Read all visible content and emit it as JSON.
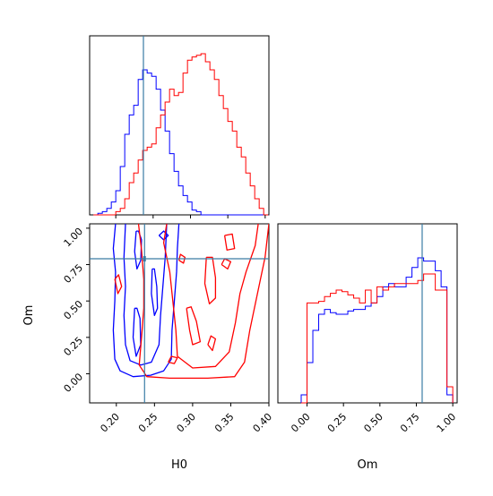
{
  "chart_data": [
    {
      "type": "histogram",
      "panel": "H0 marginal",
      "x_range": [
        0.165,
        0.405
      ],
      "bin_edges": [
        0.17,
        0.176,
        0.182,
        0.188,
        0.194,
        0.2,
        0.206,
        0.212,
        0.218,
        0.224,
        0.23,
        0.236,
        0.242,
        0.248,
        0.254,
        0.26,
        0.266,
        0.272,
        0.278,
        0.284,
        0.29,
        0.296,
        0.302,
        0.308,
        0.314,
        0.32,
        0.326,
        0.332,
        0.338,
        0.344,
        0.35,
        0.356,
        0.362,
        0.368,
        0.374,
        0.38,
        0.386,
        0.392,
        0.398,
        0.404
      ],
      "series": [
        {
          "color": "#0000ff",
          "counts": [
            0,
            0.01,
            0.02,
            0.04,
            0.08,
            0.15,
            0.3,
            0.5,
            0.62,
            0.68,
            0.84,
            0.9,
            0.88,
            0.86,
            0.78,
            0.65,
            0.52,
            0.38,
            0.27,
            0.18,
            0.12,
            0.08,
            0.03,
            0.02,
            0,
            0,
            0,
            0,
            0,
            0,
            0,
            0,
            0,
            0,
            0,
            0,
            0,
            0,
            0
          ]
        },
        {
          "color": "#ff0000",
          "counts": [
            0,
            0,
            0,
            0,
            0,
            0.02,
            0.04,
            0.1,
            0.2,
            0.26,
            0.34,
            0.4,
            0.42,
            0.44,
            0.54,
            0.62,
            0.7,
            0.78,
            0.74,
            0.76,
            0.88,
            0.96,
            0.98,
            0.99,
            1.0,
            0.95,
            0.9,
            0.84,
            0.74,
            0.66,
            0.58,
            0.52,
            0.42,
            0.36,
            0.26,
            0.18,
            0.1,
            0.04,
            0
          ]
        }
      ],
      "truth_line": 0.237,
      "xticks": [
        0.2,
        0.25,
        0.3,
        0.35,
        0.4
      ]
    },
    {
      "type": "contour",
      "panel": "H0 vs Om",
      "xlabel": "H0",
      "ylabel": "Om",
      "xlim": [
        0.165,
        0.4
      ],
      "ylim": [
        -0.2,
        1.03
      ],
      "xticks": [
        0.2,
        0.25,
        0.3,
        0.35,
        0.4
      ],
      "xtick_labels": [
        "0.20",
        "0.25",
        "0.30",
        "0.35",
        "0.40"
      ],
      "yticks": [
        0.0,
        0.25,
        0.5,
        0.75,
        1.0
      ],
      "ytick_labels": [
        "0.00",
        "0.25",
        "0.50",
        "0.75",
        "1.00"
      ],
      "truth_point": [
        0.237,
        0.79
      ],
      "series": [
        {
          "color": "#0000ff",
          "contours": [
            [
              [
                0.199,
                1.03
              ],
              [
                0.196,
                0.86
              ],
              [
                0.199,
                0.7
              ],
              [
                0.198,
                0.5
              ],
              [
                0.196,
                0.3
              ],
              [
                0.198,
                0.1
              ],
              [
                0.205,
                0.02
              ],
              [
                0.222,
                -0.02
              ],
              [
                0.245,
                -0.01
              ],
              [
                0.262,
                0.02
              ],
              [
                0.272,
                0.1
              ],
              [
                0.273,
                0.3
              ],
              [
                0.276,
                0.5
              ],
              [
                0.279,
                0.7
              ],
              [
                0.28,
                0.86
              ],
              [
                0.282,
                1.03
              ]
            ],
            [
              [
                0.212,
                1.03
              ],
              [
                0.21,
                0.8
              ],
              [
                0.212,
                0.6
              ],
              [
                0.21,
                0.4
              ],
              [
                0.212,
                0.2
              ],
              [
                0.218,
                0.09
              ],
              [
                0.232,
                0.06
              ],
              [
                0.246,
                0.08
              ],
              [
                0.256,
                0.2
              ],
              [
                0.258,
                0.4
              ],
              [
                0.261,
                0.6
              ],
              [
                0.264,
                0.8
              ],
              [
                0.266,
                1.03
              ]
            ],
            [
              [
                0.226,
                0.98
              ],
              [
                0.224,
                0.84
              ],
              [
                0.227,
                0.72
              ],
              [
                0.232,
                0.78
              ],
              [
                0.233,
                0.92
              ],
              [
                0.229,
                0.98
              ],
              [
                0.226,
                0.98
              ]
            ],
            [
              [
                0.247,
                0.72
              ],
              [
                0.246,
                0.55
              ],
              [
                0.25,
                0.4
              ],
              [
                0.254,
                0.45
              ],
              [
                0.253,
                0.6
              ],
              [
                0.25,
                0.72
              ],
              [
                0.247,
                0.72
              ]
            ],
            [
              [
                0.224,
                0.45
              ],
              [
                0.222,
                0.25
              ],
              [
                0.226,
                0.12
              ],
              [
                0.232,
                0.2
              ],
              [
                0.231,
                0.38
              ],
              [
                0.227,
                0.45
              ],
              [
                0.224,
                0.45
              ]
            ],
            [
              [
                0.256,
                0.95
              ],
              [
                0.262,
                0.92
              ],
              [
                0.268,
                0.95
              ],
              [
                0.262,
                0.98
              ],
              [
                0.256,
                0.95
              ]
            ]
          ]
        },
        {
          "color": "#ff0000",
          "contours": [
            [
              [
                0.229,
                1.03
              ],
              [
                0.233,
                0.85
              ],
              [
                0.236,
                0.65
              ],
              [
                0.236,
                0.45
              ],
              [
                0.233,
                0.25
              ],
              [
                0.23,
                0.06
              ],
              [
                0.24,
                -0.02
              ],
              [
                0.27,
                -0.03
              ],
              [
                0.32,
                -0.03
              ],
              [
                0.355,
                -0.02
              ],
              [
                0.368,
                0.08
              ],
              [
                0.375,
                0.3
              ],
              [
                0.385,
                0.55
              ],
              [
                0.395,
                0.8
              ],
              [
                0.4,
                1.03
              ]
            ],
            [
              [
                0.266,
                1.03
              ],
              [
                0.262,
                0.9
              ],
              [
                0.27,
                0.7
              ],
              [
                0.274,
                0.5
              ],
              [
                0.278,
                0.3
              ],
              [
                0.28,
                0.12
              ],
              [
                0.3,
                0.04
              ],
              [
                0.33,
                0.05
              ],
              [
                0.348,
                0.15
              ],
              [
                0.356,
                0.35
              ],
              [
                0.362,
                0.55
              ],
              [
                0.37,
                0.7
              ],
              [
                0.382,
                0.88
              ],
              [
                0.386,
                1.03
              ]
            ],
            [
              [
                0.292,
                0.45
              ],
              [
                0.296,
                0.3
              ],
              [
                0.3,
                0.2
              ],
              [
                0.31,
                0.22
              ],
              [
                0.305,
                0.36
              ],
              [
                0.298,
                0.46
              ],
              [
                0.292,
                0.45
              ]
            ],
            [
              [
                0.318,
                0.8
              ],
              [
                0.316,
                0.62
              ],
              [
                0.322,
                0.48
              ],
              [
                0.33,
                0.52
              ],
              [
                0.33,
                0.66
              ],
              [
                0.326,
                0.8
              ],
              [
                0.318,
                0.8
              ]
            ],
            [
              [
                0.342,
                0.95
              ],
              [
                0.345,
                0.85
              ],
              [
                0.355,
                0.86
              ],
              [
                0.352,
                0.96
              ],
              [
                0.342,
                0.95
              ]
            ],
            [
              [
                0.338,
                0.75
              ],
              [
                0.346,
                0.72
              ],
              [
                0.35,
                0.77
              ],
              [
                0.342,
                0.79
              ],
              [
                0.338,
                0.75
              ]
            ],
            [
              [
                0.268,
                0.08
              ],
              [
                0.276,
                0.07
              ],
              [
                0.28,
                0.11
              ],
              [
                0.272,
                0.12
              ],
              [
                0.268,
                0.08
              ]
            ],
            [
              [
                0.198,
                0.65
              ],
              [
                0.202,
                0.55
              ],
              [
                0.207,
                0.6
              ],
              [
                0.203,
                0.68
              ],
              [
                0.198,
                0.65
              ]
            ],
            [
              [
                0.32,
                0.2
              ],
              [
                0.326,
                0.16
              ],
              [
                0.33,
                0.24
              ],
              [
                0.324,
                0.26
              ],
              [
                0.32,
                0.2
              ]
            ],
            [
              [
                0.282,
                0.78
              ],
              [
                0.288,
                0.76
              ],
              [
                0.29,
                0.8
              ],
              [
                0.284,
                0.82
              ],
              [
                0.282,
                0.78
              ]
            ]
          ]
        }
      ]
    },
    {
      "type": "histogram",
      "panel": "Om marginal",
      "xlabel": "Om",
      "x_range": [
        -0.2,
        1.03
      ],
      "bin_edges": [
        -0.04,
        0.0,
        0.04,
        0.08,
        0.12,
        0.16,
        0.2,
        0.24,
        0.28,
        0.32,
        0.36,
        0.4,
        0.44,
        0.48,
        0.52,
        0.56,
        0.6,
        0.64,
        0.68,
        0.72,
        0.76,
        0.8,
        0.84,
        0.88,
        0.92,
        0.96,
        1.0
      ],
      "xticks": [
        0.0,
        0.25,
        0.5,
        0.75,
        1.0
      ],
      "xtick_labels": [
        "0.00",
        "0.25",
        "0.50",
        "0.75",
        "1.00"
      ],
      "series": [
        {
          "color": "#0000ff",
          "counts": [
            0.05,
            0.25,
            0.45,
            0.55,
            0.58,
            0.56,
            0.55,
            0.55,
            0.57,
            0.58,
            0.58,
            0.6,
            0.62,
            0.66,
            0.72,
            0.74,
            0.72,
            0.72,
            0.78,
            0.84,
            0.9,
            0.88,
            0.88,
            0.82,
            0.72,
            0.05
          ]
        },
        {
          "color": "#ff0000",
          "counts": [
            0,
            0.62,
            0.62,
            0.63,
            0.66,
            0.68,
            0.7,
            0.69,
            0.67,
            0.65,
            0.62,
            0.7,
            0.62,
            0.72,
            0.7,
            0.72,
            0.74,
            0.74,
            0.74,
            0.74,
            0.76,
            0.8,
            0.8,
            0.7,
            0.7,
            0.1
          ]
        }
      ],
      "truth_line": 0.79
    }
  ]
}
